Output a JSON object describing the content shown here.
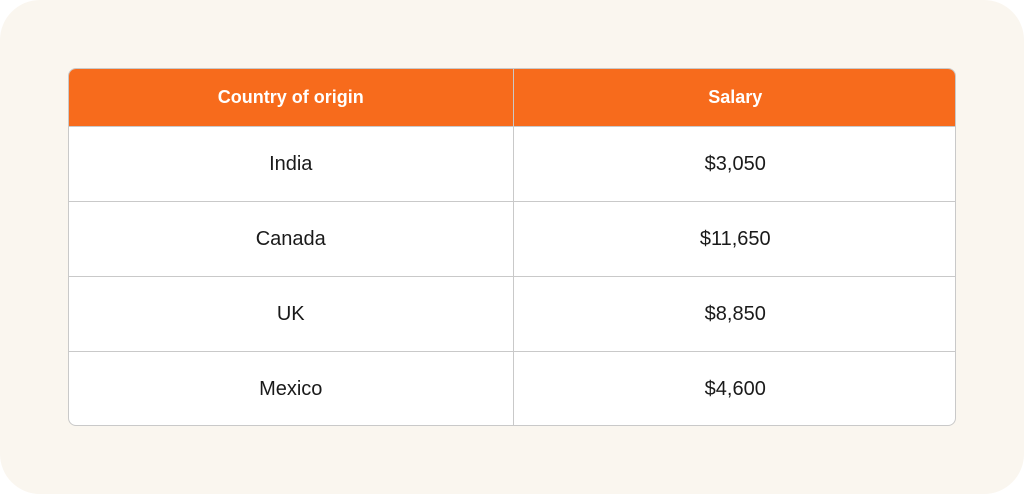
{
  "table": {
    "headers": [
      "Country of origin",
      "Salary"
    ],
    "rows": [
      {
        "country": "India",
        "salary": "$3,050"
      },
      {
        "country": "Canada",
        "salary": "$11,650"
      },
      {
        "country": "UK",
        "salary": "$8,850"
      },
      {
        "country": "Mexico",
        "salary": "$4,600"
      }
    ]
  },
  "colors": {
    "header_bg": "#f76b1c",
    "card_bg": "#faf6ef",
    "border": "#c9c9c9"
  }
}
